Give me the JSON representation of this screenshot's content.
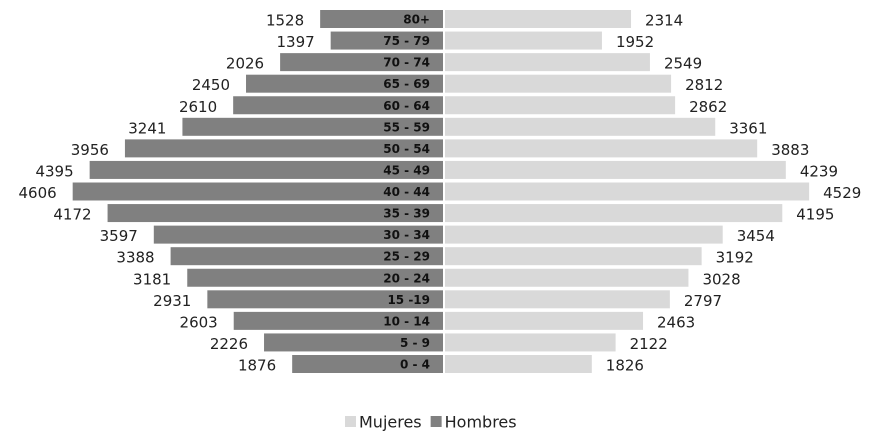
{
  "chart_data": {
    "type": "bar",
    "categories": [
      "80+",
      "75 - 79",
      "70 - 74",
      "65 - 69",
      "60 - 64",
      "55 - 59",
      "50 - 54",
      "45 - 49",
      "40 - 44",
      "35 - 39",
      "30 - 34",
      "25 - 29",
      "20 - 24",
      "15 -19",
      "10 - 14",
      "5 - 9",
      "0 - 4"
    ],
    "series": [
      {
        "name": "Mujeres",
        "color": "#d9d9d9",
        "side": "right",
        "values": [
          2314,
          1952,
          2549,
          2812,
          2862,
          3361,
          3883,
          4239,
          4529,
          4195,
          3454,
          3192,
          3028,
          2797,
          2463,
          2122,
          1826
        ]
      },
      {
        "name": "Hombres",
        "color": "#808080",
        "side": "left",
        "values": [
          1528,
          1397,
          2026,
          2450,
          2610,
          3241,
          3956,
          4395,
          4606,
          4172,
          3597,
          3388,
          3181,
          2931,
          2603,
          2226,
          1876
        ]
      }
    ],
    "legend": "bottom"
  }
}
